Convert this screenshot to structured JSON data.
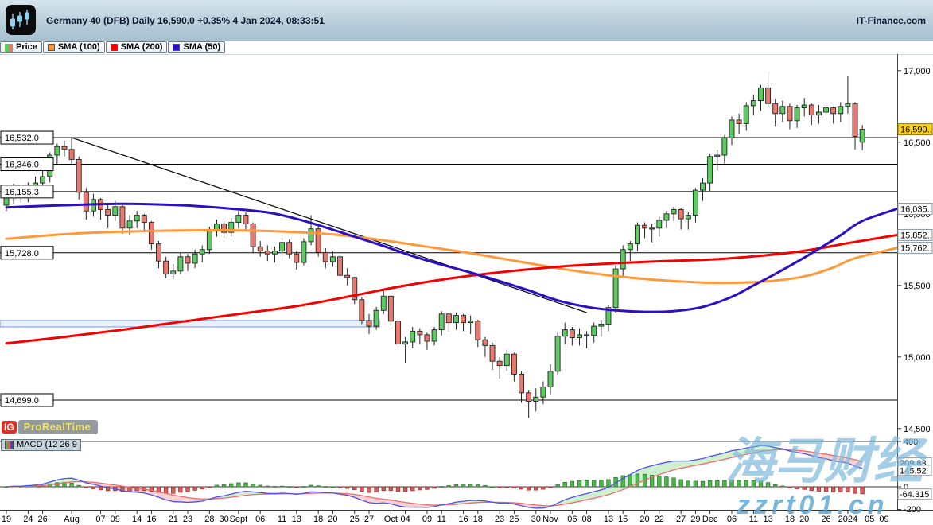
{
  "header": {
    "title": "Germany 40 (DFB) Daily 16,590.0 +0.35% 4 Jan 2024, 08:33:51",
    "brand": "IT-Finance.com"
  },
  "legend": {
    "items": [
      {
        "label": "Price"
      },
      {
        "label": "SMA (100)"
      },
      {
        "label": "SMA (200)"
      },
      {
        "label": "SMA (50)"
      }
    ]
  },
  "logo": {
    "ig": "IG",
    "name": "ProRealTime"
  },
  "indicator": {
    "label": "MACD (12 26 9"
  },
  "watermark": {
    "line1": "海马财经",
    "line2": "zzrt01.cn"
  },
  "chart_data": {
    "type": "candlestick",
    "title": "Germany 40 (DFB) Daily",
    "last_price": 16590.0,
    "change_pct": "+0.35%",
    "timestamp": "4 Jan 2024, 08:33:51",
    "colors": {
      "up": "#5ecb62",
      "down": "#e9796f",
      "sma100": "#ff9a3c",
      "sma200": "#f40000",
      "sma50": "#2e0ec4",
      "current_box_bg": "#ffd21e",
      "macd_line": "#5050e8",
      "macd_signal": "#ef6a6a",
      "hist_up": "#4db84d",
      "hist_down": "#d45f5f"
    },
    "y_ticks": [
      {
        "v": 17000,
        "t": "17,000"
      },
      {
        "v": 16500,
        "t": "16,500"
      },
      {
        "v": 16000,
        "t": "16,000"
      },
      {
        "v": 15500,
        "t": "15,500"
      },
      {
        "v": 15000,
        "t": "15,000"
      },
      {
        "v": 14500,
        "t": "14,500"
      }
    ],
    "y_boxes": [
      {
        "v": 16590.0,
        "t": "16,590..",
        "bg": "#ffd21e",
        "border": "#8a7500",
        "color": "#000000"
      },
      {
        "v": 16035.0,
        "t": "16,035..",
        "bg": "#ffffff",
        "border": "#8a99a2",
        "color": "#2a08c8"
      },
      {
        "v": 15852.0,
        "t": "15,852..",
        "bg": "#ffffff",
        "border": "#8a99a2",
        "color": "#e80000"
      },
      {
        "v": 15762.0,
        "t": "15,762..",
        "bg": "#ffffff",
        "border": "#8a99a2",
        "color": "#ff8c00"
      }
    ],
    "price_lines": [
      {
        "value": 16532.0,
        "label": "16,532.0"
      },
      {
        "value": 16346.0,
        "label": "16,346.0"
      },
      {
        "value": 16155.3,
        "label": "16,155.3"
      },
      {
        "value": 15728.0,
        "label": "15,728.0"
      },
      {
        "value": 14699.0,
        "label": "14,699.0"
      }
    ],
    "trendline": {
      "from": [
        9,
        16532
      ],
      "to": [
        80,
        15310
      ]
    },
    "support_band": {
      "from_index": 0,
      "to_index": 51,
      "top": 15255,
      "bottom": 15210
    },
    "candles": [
      [
        16060,
        16150,
        16020,
        16110
      ],
      [
        16110,
        16210,
        16070,
        16175
      ],
      [
        16175,
        16200,
        16080,
        16120
      ],
      [
        16120,
        16220,
        16080,
        16190
      ],
      [
        16190,
        16260,
        16130,
        16215
      ],
      [
        16215,
        16300,
        16160,
        16260
      ],
      [
        16260,
        16430,
        16220,
        16410
      ],
      [
        16410,
        16490,
        16340,
        16470
      ],
      [
        16470,
        16510,
        16400,
        16450
      ],
      [
        16450,
        16532,
        16350,
        16380
      ],
      [
        16380,
        16400,
        16100,
        16150
      ],
      [
        16150,
        16180,
        15960,
        16020
      ],
      [
        16020,
        16140,
        15980,
        16100
      ],
      [
        16100,
        16110,
        15960,
        16030
      ],
      [
        16030,
        16060,
        15900,
        15990
      ],
      [
        15990,
        16090,
        15950,
        16050
      ],
      [
        16050,
        16060,
        15860,
        15900
      ],
      [
        15900,
        15990,
        15850,
        15950
      ],
      [
        15950,
        16020,
        15900,
        15990
      ],
      [
        15990,
        16000,
        15880,
        15940
      ],
      [
        15940,
        15950,
        15750,
        15790
      ],
      [
        15790,
        15810,
        15620,
        15670
      ],
      [
        15670,
        15700,
        15550,
        15580
      ],
      [
        15580,
        15650,
        15540,
        15600
      ],
      [
        15600,
        15730,
        15580,
        15700
      ],
      [
        15700,
        15720,
        15600,
        15655
      ],
      [
        15655,
        15750,
        15620,
        15720
      ],
      [
        15720,
        15780,
        15660,
        15750
      ],
      [
        15750,
        15910,
        15720,
        15890
      ],
      [
        15890,
        15960,
        15840,
        15930
      ],
      [
        15930,
        15950,
        15830,
        15870
      ],
      [
        15870,
        15970,
        15840,
        15940
      ],
      [
        15940,
        16020,
        15900,
        15990
      ],
      [
        15990,
        16010,
        15880,
        15930
      ],
      [
        15930,
        15940,
        15730,
        15770
      ],
      [
        15770,
        15810,
        15700,
        15740
      ],
      [
        15740,
        15780,
        15670,
        15720
      ],
      [
        15720,
        15770,
        15660,
        15740
      ],
      [
        15740,
        15830,
        15700,
        15800
      ],
      [
        15800,
        15820,
        15690,
        15720
      ],
      [
        15720,
        15740,
        15610,
        15660
      ],
      [
        15660,
        15830,
        15640,
        15805
      ],
      [
        15805,
        15990,
        15780,
        15895
      ],
      [
        15895,
        15910,
        15700,
        15730
      ],
      [
        15730,
        15760,
        15620,
        15665
      ],
      [
        15665,
        15740,
        15630,
        15700
      ],
      [
        15700,
        15710,
        15540,
        15570
      ],
      [
        15570,
        15620,
        15500,
        15555
      ],
      [
        15555,
        15560,
        15370,
        15400
      ],
      [
        15400,
        15420,
        15230,
        15255
      ],
      [
        15255,
        15300,
        15160,
        15215
      ],
      [
        15215,
        15350,
        15190,
        15325
      ],
      [
        15325,
        15460,
        15300,
        15425
      ],
      [
        15425,
        15430,
        15220,
        15250
      ],
      [
        15250,
        15270,
        15050,
        15090
      ],
      [
        15090,
        15140,
        14960,
        15105
      ],
      [
        15105,
        15210,
        15060,
        15180
      ],
      [
        15180,
        15200,
        15090,
        15155
      ],
      [
        15155,
        15170,
        15050,
        15110
      ],
      [
        15110,
        15210,
        15080,
        15190
      ],
      [
        15190,
        15320,
        15150,
        15300
      ],
      [
        15300,
        15310,
        15180,
        15240
      ],
      [
        15240,
        15310,
        15190,
        15290
      ],
      [
        15290,
        15300,
        15180,
        15240
      ],
      [
        15240,
        15290,
        15160,
        15250
      ],
      [
        15250,
        15260,
        15070,
        15120
      ],
      [
        15120,
        15140,
        15000,
        15080
      ],
      [
        15080,
        15100,
        14910,
        14970
      ],
      [
        14970,
        15000,
        14850,
        14940
      ],
      [
        14940,
        15050,
        14900,
        15020
      ],
      [
        15020,
        15030,
        14830,
        14880
      ],
      [
        14880,
        14900,
        14680,
        14750
      ],
      [
        14750,
        14770,
        14575,
        14690
      ],
      [
        14690,
        14780,
        14620,
        14720
      ],
      [
        14720,
        14830,
        14670,
        14790
      ],
      [
        14790,
        14950,
        14740,
        14900
      ],
      [
        14900,
        15170,
        14870,
        15145
      ],
      [
        15145,
        15240,
        15090,
        15190
      ],
      [
        15190,
        15210,
        15080,
        15135
      ],
      [
        15135,
        15200,
        15080,
        15155
      ],
      [
        15155,
        15180,
        15060,
        15150
      ],
      [
        15150,
        15240,
        15100,
        15215
      ],
      [
        15215,
        15260,
        15140,
        15230
      ],
      [
        15230,
        15360,
        15180,
        15345
      ],
      [
        15345,
        15640,
        15310,
        15615
      ],
      [
        15615,
        15780,
        15560,
        15750
      ],
      [
        15750,
        15810,
        15670,
        15790
      ],
      [
        15790,
        15940,
        15740,
        15920
      ],
      [
        15920,
        15940,
        15830,
        15900
      ],
      [
        15900,
        15930,
        15800,
        15900
      ],
      [
        15900,
        15980,
        15840,
        15955
      ],
      [
        15955,
        16020,
        15900,
        16000
      ],
      [
        16000,
        16050,
        15950,
        16030
      ],
      [
        16030,
        16040,
        15890,
        15965
      ],
      [
        15965,
        16010,
        15890,
        15990
      ],
      [
        15990,
        16180,
        15940,
        16165
      ],
      [
        16165,
        16250,
        16090,
        16215
      ],
      [
        16215,
        16420,
        16160,
        16400
      ],
      [
        16400,
        16450,
        16300,
        16410
      ],
      [
        16410,
        16550,
        16350,
        16530
      ],
      [
        16530,
        16680,
        16480,
        16655
      ],
      [
        16655,
        16700,
        16560,
        16630
      ],
      [
        16630,
        16780,
        16580,
        16755
      ],
      [
        16755,
        16830,
        16690,
        16790
      ],
      [
        16790,
        16900,
        16720,
        16880
      ],
      [
        16880,
        17003,
        16750,
        16770
      ],
      [
        16770,
        16800,
        16610,
        16700
      ],
      [
        16700,
        16790,
        16640,
        16750
      ],
      [
        16750,
        16770,
        16590,
        16650
      ],
      [
        16650,
        16760,
        16600,
        16740
      ],
      [
        16740,
        16810,
        16680,
        16760
      ],
      [
        16760,
        16770,
        16620,
        16690
      ],
      [
        16690,
        16760,
        16630,
        16710
      ],
      [
        16710,
        16780,
        16650,
        16740
      ],
      [
        16740,
        16750,
        16630,
        16700
      ],
      [
        16700,
        16780,
        16640,
        16750
      ],
      [
        16750,
        16960,
        16700,
        16770
      ],
      [
        16770,
        16780,
        16450,
        16540
      ],
      [
        16500,
        16620,
        16445,
        16590
      ]
    ],
    "x_ticks": [
      [
        0,
        "19"
      ],
      [
        3,
        "24"
      ],
      [
        5,
        "26"
      ],
      [
        9,
        "Aug"
      ],
      [
        13,
        "07"
      ],
      [
        15,
        "09"
      ],
      [
        18,
        "14"
      ],
      [
        20,
        "16"
      ],
      [
        23,
        "21"
      ],
      [
        25,
        "23"
      ],
      [
        28,
        "28"
      ],
      [
        30,
        "30"
      ],
      [
        32,
        "Sept"
      ],
      [
        35,
        "06"
      ],
      [
        38,
        "11"
      ],
      [
        40,
        "13"
      ],
      [
        43,
        "18"
      ],
      [
        45,
        "20"
      ],
      [
        48,
        "25"
      ],
      [
        50,
        "27"
      ],
      [
        53,
        "Oct"
      ],
      [
        55,
        "04"
      ],
      [
        58,
        "09"
      ],
      [
        60,
        "11"
      ],
      [
        63,
        "16"
      ],
      [
        65,
        "18"
      ],
      [
        68,
        "23"
      ],
      [
        70,
        "25"
      ],
      [
        73,
        "30"
      ],
      [
        75,
        "Nov"
      ],
      [
        78,
        "06"
      ],
      [
        80,
        "08"
      ],
      [
        83,
        "13"
      ],
      [
        85,
        "15"
      ],
      [
        88,
        "20"
      ],
      [
        90,
        "22"
      ],
      [
        93,
        "27"
      ],
      [
        95,
        "29"
      ],
      [
        97,
        "Dec"
      ],
      [
        100,
        "06"
      ],
      [
        103,
        "11"
      ],
      [
        105,
        "13"
      ],
      [
        108,
        "18"
      ],
      [
        110,
        "20"
      ],
      [
        113,
        "26"
      ],
      [
        116,
        "2024"
      ],
      [
        119,
        "05"
      ],
      [
        121,
        "09"
      ]
    ],
    "sma50": {
      "period": 50,
      "points": [
        [
          0,
          16045
        ],
        [
          8,
          16060
        ],
        [
          16,
          16070
        ],
        [
          24,
          16060
        ],
        [
          30,
          16040
        ],
        [
          36,
          16010
        ],
        [
          40,
          15965
        ],
        [
          44,
          15905
        ],
        [
          48,
          15840
        ],
        [
          52,
          15775
        ],
        [
          56,
          15705
        ],
        [
          60,
          15645
        ],
        [
          64,
          15590
        ],
        [
          68,
          15530
        ],
        [
          72,
          15465
        ],
        [
          76,
          15395
        ],
        [
          80,
          15350
        ],
        [
          84,
          15325
        ],
        [
          88,
          15315
        ],
        [
          92,
          15320
        ],
        [
          96,
          15350
        ],
        [
          100,
          15420
        ],
        [
          103,
          15500
        ],
        [
          106,
          15580
        ],
        [
          109,
          15665
        ],
        [
          112,
          15755
        ],
        [
          115,
          15850
        ],
        [
          118,
          15950
        ],
        [
          123,
          16035
        ]
      ]
    },
    "sma100": {
      "period": 100,
      "points": [
        [
          0,
          15825
        ],
        [
          6,
          15850
        ],
        [
          12,
          15868
        ],
        [
          20,
          15880
        ],
        [
          28,
          15885
        ],
        [
          36,
          15880
        ],
        [
          44,
          15860
        ],
        [
          48,
          15840
        ],
        [
          52,
          15815
        ],
        [
          56,
          15785
        ],
        [
          60,
          15755
        ],
        [
          64,
          15725
        ],
        [
          68,
          15690
        ],
        [
          72,
          15655
        ],
        [
          76,
          15620
        ],
        [
          80,
          15590
        ],
        [
          84,
          15565
        ],
        [
          88,
          15545
        ],
        [
          92,
          15530
        ],
        [
          96,
          15520
        ],
        [
          100,
          15518
        ],
        [
          104,
          15525
        ],
        [
          108,
          15545
        ],
        [
          111,
          15575
        ],
        [
          114,
          15625
        ],
        [
          117,
          15690
        ],
        [
          123,
          15762
        ]
      ]
    },
    "sma200": {
      "period": 200,
      "points": [
        [
          0,
          15095
        ],
        [
          8,
          15140
        ],
        [
          16,
          15190
        ],
        [
          24,
          15245
        ],
        [
          32,
          15300
        ],
        [
          40,
          15355
        ],
        [
          48,
          15430
        ],
        [
          54,
          15490
        ],
        [
          60,
          15540
        ],
        [
          66,
          15580
        ],
        [
          72,
          15612
        ],
        [
          78,
          15638
        ],
        [
          84,
          15655
        ],
        [
          90,
          15668
        ],
        [
          96,
          15678
        ],
        [
          100,
          15690
        ],
        [
          104,
          15707
        ],
        [
          108,
          15728
        ],
        [
          112,
          15758
        ],
        [
          116,
          15795
        ],
        [
          123,
          15852
        ]
      ]
    },
    "macd": {
      "params": [
        12,
        26,
        9
      ],
      "axis": [
        {
          "v": 400,
          "t": "400"
        },
        {
          "v": 0,
          "t": "0"
        },
        {
          "v": -200,
          "t": "-200"
        }
      ],
      "boxes": [
        {
          "v": 209.83,
          "t": "209.83",
          "color": "#f08a8a"
        },
        {
          "v": 145.52,
          "t": "145.52",
          "color": "#4444dd"
        },
        {
          "v": -64.315,
          "t": "-64.315",
          "color": "#e02020"
        }
      ]
    }
  }
}
